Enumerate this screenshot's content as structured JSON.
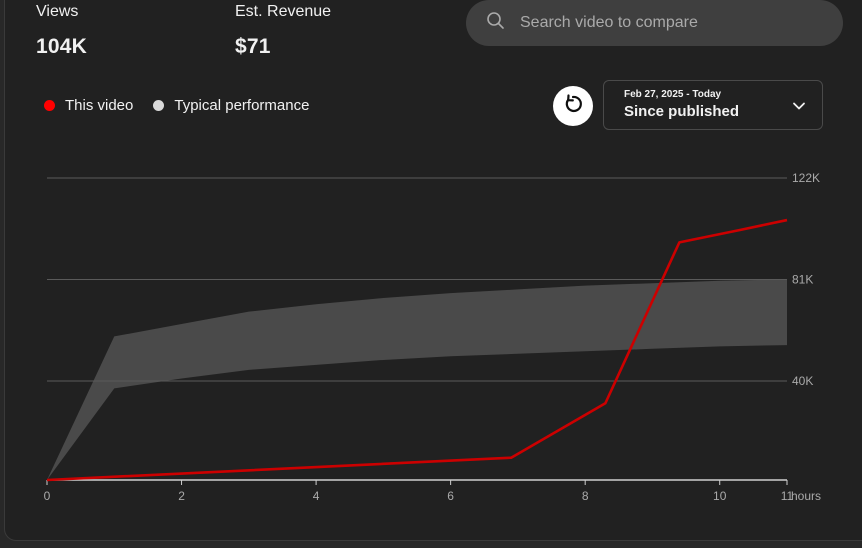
{
  "metrics": {
    "views": {
      "label": "Views",
      "value": "104K"
    },
    "revenue": {
      "label": "Est. Revenue",
      "value": "$71"
    }
  },
  "search": {
    "placeholder": "Search video to compare",
    "icon": "search-icon"
  },
  "legend": {
    "this_video": {
      "label": "This video",
      "color": "#ff0000"
    },
    "typical": {
      "label": "Typical performance",
      "color": "#d9d9d9"
    }
  },
  "controls": {
    "refresh_icon": "refresh-icon",
    "date_range": "Feb 27, 2025 - Today",
    "date_value": "Since published"
  },
  "chart_data": {
    "type": "line",
    "x_unit": "hours",
    "xlim": [
      0,
      11
    ],
    "ylim": [
      0,
      122000
    ],
    "x_ticks": [
      "0",
      "2",
      "4",
      "6",
      "8",
      "10",
      "11"
    ],
    "y_ticks": [
      "40K",
      "81K",
      "122K"
    ],
    "y_tick_values": [
      40000,
      81000,
      122000
    ],
    "grid": true,
    "series": [
      {
        "name": "This video",
        "color": "#cc0000",
        "x": [
          0,
          6.9,
          8.3,
          9.4,
          10.3,
          11
        ],
        "values": [
          0,
          9000,
          31000,
          96000,
          101000,
          105000
        ]
      }
    ],
    "band": {
      "name": "Typical performance",
      "color": "#4a4a4a",
      "x": [
        0,
        1,
        2,
        3,
        4,
        5,
        6,
        7,
        8,
        9,
        10,
        11
      ],
      "upper": [
        0,
        58000,
        63000,
        68000,
        71000,
        73500,
        75500,
        77000,
        78500,
        79500,
        80500,
        81000
      ],
      "lower": [
        0,
        37000,
        41000,
        44500,
        46500,
        48500,
        50000,
        51000,
        52000,
        53000,
        54000,
        54500
      ]
    }
  }
}
